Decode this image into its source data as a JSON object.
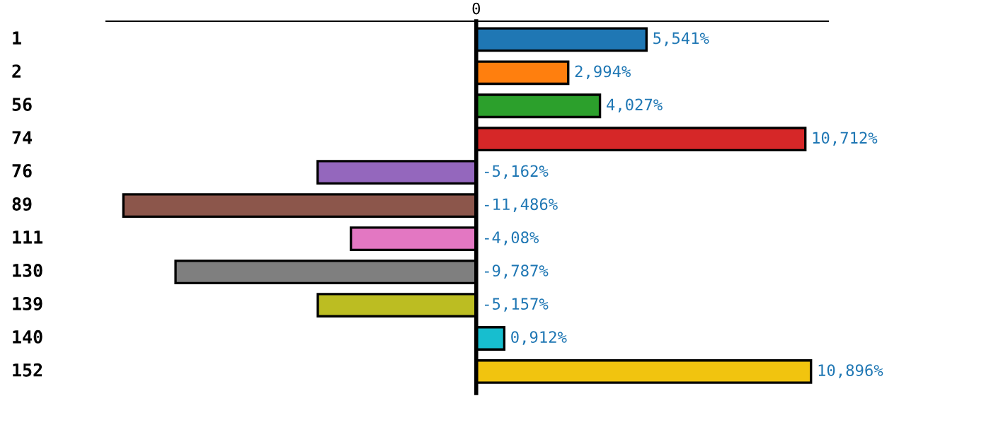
{
  "chart_data": {
    "type": "bar",
    "orientation": "horizontal",
    "categories": [
      "1",
      "2",
      "56",
      "74",
      "76",
      "89",
      "111",
      "130",
      "139",
      "140",
      "152"
    ],
    "values": [
      5.541,
      2.994,
      4.027,
      10.712,
      -5.162,
      -11.486,
      -4.08,
      -9.787,
      -5.157,
      0.912,
      10.896
    ],
    "colors": [
      "#1f77b4",
      "#ff7f0e",
      "#2ca02c",
      "#d62728",
      "#9467bd",
      "#8c564b",
      "#e377c2",
      "#7f7f7f",
      "#bcbd22",
      "#17becf",
      "#f1c40f"
    ],
    "value_labels": [
      "5,541%",
      "2,994%",
      "4,027%",
      "10,712%",
      "-5,162%",
      "-11,486%",
      "-4,08%",
      "-9,787%",
      "-5,157%",
      "0,912%",
      "10,896%"
    ],
    "annotations": [
      "0"
    ]
  }
}
